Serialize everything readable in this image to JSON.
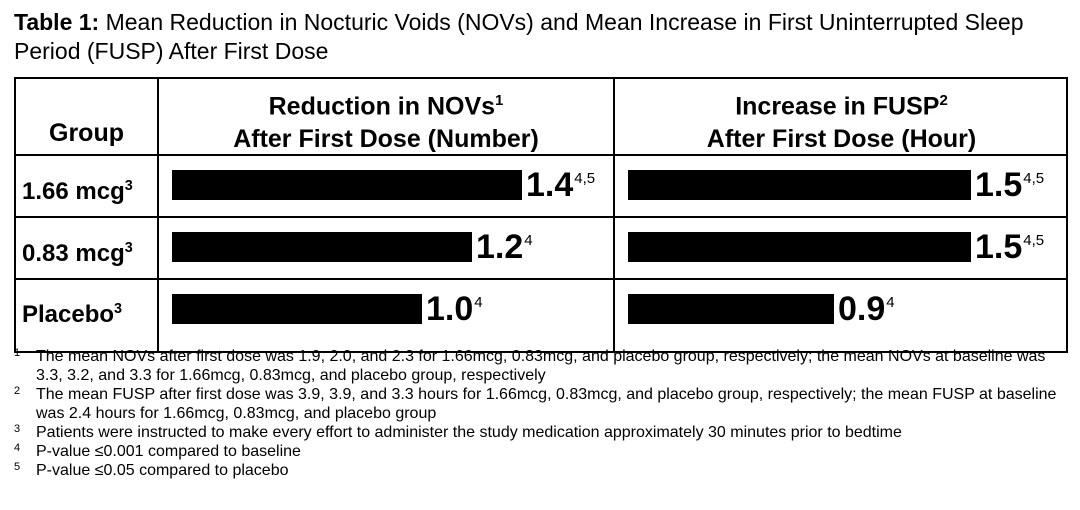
{
  "title": {
    "prefix": "Table 1:",
    "text": "Mean Reduction in Nocturic Voids (NOVs) and Mean Increase in First Uninterrupted Sleep Period (FUSP) After First Dose"
  },
  "table": {
    "group_header": "Group",
    "col1_header_line1": "Reduction in NOVs",
    "col1_header_sup": "1",
    "col1_header_line2": "After First Dose (Number)",
    "col2_header_line1": "Increase in FUSP",
    "col2_header_sup": "2",
    "col2_header_line2": "After First Dose (Hour)",
    "rows": [
      {
        "group": "1.66 mcg",
        "group_sup": "3",
        "nov_label": "1.4",
        "nov_sup": "4,5",
        "fusp_label": "1.5",
        "fusp_sup": "4,5"
      },
      {
        "group": "0.83 mcg",
        "group_sup": "3",
        "nov_label": "1.2",
        "nov_sup": "4",
        "fusp_label": "1.5",
        "fusp_sup": "4,5"
      },
      {
        "group": "Placebo",
        "group_sup": "3",
        "nov_label": "1.0",
        "nov_sup": "4",
        "fusp_label": "0.9",
        "fusp_sup": "4"
      }
    ]
  },
  "chart_data": [
    {
      "type": "bar",
      "orientation": "horizontal",
      "categories": [
        "1.66 mcg",
        "0.83 mcg",
        "Placebo"
      ],
      "values": [
        1.4,
        1.2,
        1.0
      ],
      "bar_color": "#000000",
      "xlim": [
        0,
        1.4
      ]
    },
    {
      "type": "bar",
      "orientation": "horizontal",
      "categories": [
        "1.66 mcg",
        "0.83 mcg",
        "Placebo"
      ],
      "values": [
        1.5,
        1.5,
        0.9
      ],
      "bar_color": "#000000",
      "xlim": [
        0,
        1.5
      ]
    }
  ],
  "footnotes": [
    {
      "num": "1",
      "text": "The mean NOVs after first dose was 1.9, 2.0, and 2.3 for 1.66mcg, 0.83mcg, and placebo group, respectively; the mean NOVs at baseline was 3.3, 3.2, and 3.3 for 1.66mcg, 0.83mcg, and placebo group, respectively"
    },
    {
      "num": "2",
      "text": "The mean FUSP after first dose was 3.9, 3.9, and 3.3 hours for 1.66mcg, 0.83mcg, and placebo group, respectively; the mean FUSP at baseline was 2.4 hours for 1.66mcg, 0.83mcg, and placebo group"
    },
    {
      "num": "3",
      "text": "Patients were instructed to make every effort to administer the study medication approximately 30 minutes prior to bedtime"
    },
    {
      "num": "4",
      "text": "P-value ≤0.001 compared to baseline"
    },
    {
      "num": "5",
      "text": "P-value ≤0.05 compared to placebo"
    }
  ]
}
